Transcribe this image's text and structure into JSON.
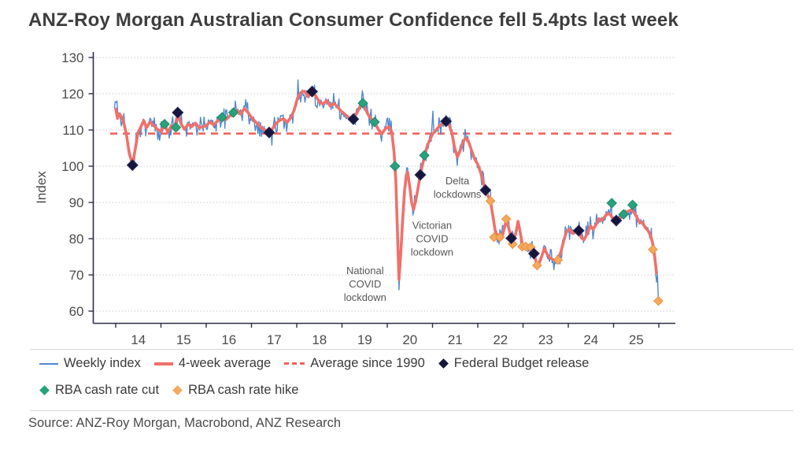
{
  "title": "ANZ-Roy Morgan Australian Consumer Confidence fell 5.4pts last week",
  "source": "Source: ANZ-Roy Morgan, Macrobond, ANZ Research",
  "colors": {
    "weekly": "#5288cc",
    "fourweek": "#f0706b",
    "average_line": "#f2625c",
    "budget": "#16163c",
    "rate_cut": "#28a27c",
    "rate_hike": "#f5a95f",
    "grid": "#cccccc",
    "axis": "#2e2e48",
    "tick_text": "#4c4c4c",
    "annotation_text": "#575757",
    "separator": "#d8d8d8"
  },
  "legend": {
    "rows": [
      [
        {
          "label": "Weekly index",
          "swatch": "line",
          "color": "#5288cc",
          "name": "legend-weekly-index"
        },
        {
          "label": "4-week average",
          "swatch": "thick-line",
          "color": "#f0706b",
          "name": "legend-4-week-average"
        },
        {
          "label": "Average since 1990",
          "swatch": "dashed-line",
          "color": "#f2625c",
          "name": "legend-average-since-1990"
        },
        {
          "label": "Federal Budget release",
          "swatch": "diamond",
          "color": "#16163c",
          "name": "legend-federal-budget-release"
        }
      ],
      [
        {
          "label": "RBA cash rate cut",
          "swatch": "diamond",
          "color": "#28a27c",
          "name": "legend-rba-cash-rate-cut"
        },
        {
          "label": "RBA cash rate hike",
          "swatch": "diamond",
          "color": "#f5a95f",
          "name": "legend-rba-cash-rate-hike"
        }
      ]
    ]
  },
  "chart_data": {
    "type": "line",
    "title": "ANZ-Roy Morgan Australian Consumer Confidence fell 5.4pts last week",
    "xlabel": "",
    "ylabel": "Index",
    "ylim": [
      56.5,
      131.5
    ],
    "xlim": [
      2013.5,
      2026.4
    ],
    "grid": "dotted-horizontal",
    "legend_position": "bottom",
    "yticks": [
      60,
      70,
      80,
      90,
      100,
      110,
      120,
      130
    ],
    "xtick_boundaries": [
      2014,
      2015,
      2016,
      2017,
      2018,
      2019,
      2020,
      2021,
      2022,
      2023,
      2024,
      2025,
      2026
    ],
    "xtick_labels": [
      "14",
      "15",
      "16",
      "17",
      "18",
      "19",
      "20",
      "21",
      "22",
      "23",
      "24",
      "25"
    ],
    "average_since_1990": 109,
    "weekly_noise_amplitude": 1.5,
    "series": [
      {
        "name": "4-week average",
        "points": [
          [
            2014.0,
            115.8
          ],
          [
            2014.04,
            113.2
          ],
          [
            2014.08,
            114.5
          ],
          [
            2014.13,
            113.6
          ],
          [
            2014.18,
            111.8
          ],
          [
            2014.24,
            108.5
          ],
          [
            2014.3,
            103.5
          ],
          [
            2014.37,
            100.5
          ],
          [
            2014.43,
            104.5
          ],
          [
            2014.49,
            109.2
          ],
          [
            2014.56,
            111.0
          ],
          [
            2014.62,
            112.6
          ],
          [
            2014.68,
            110.6
          ],
          [
            2014.76,
            112.2
          ],
          [
            2014.84,
            111.2
          ],
          [
            2014.92,
            110.2
          ],
          [
            2015.0,
            109.6
          ],
          [
            2015.08,
            111.6
          ],
          [
            2015.15,
            109.4
          ],
          [
            2015.23,
            111.2
          ],
          [
            2015.3,
            110.6
          ],
          [
            2015.37,
            114.4
          ],
          [
            2015.45,
            111.5
          ],
          [
            2015.52,
            110.2
          ],
          [
            2015.6,
            111.6
          ],
          [
            2015.68,
            110.9
          ],
          [
            2015.76,
            111.9
          ],
          [
            2015.85,
            110.6
          ],
          [
            2015.93,
            110.9
          ],
          [
            2016.0,
            111.2
          ],
          [
            2016.08,
            112.2
          ],
          [
            2016.16,
            111.4
          ],
          [
            2016.24,
            112.4
          ],
          [
            2016.35,
            113.6
          ],
          [
            2016.44,
            112.9
          ],
          [
            2016.52,
            113.9
          ],
          [
            2016.6,
            114.9
          ],
          [
            2016.68,
            115.4
          ],
          [
            2016.76,
            114.4
          ],
          [
            2016.84,
            115.9
          ],
          [
            2016.92,
            114.9
          ],
          [
            2017.0,
            113.4
          ],
          [
            2017.08,
            112.4
          ],
          [
            2017.16,
            111.4
          ],
          [
            2017.24,
            110.4
          ],
          [
            2017.32,
            109.9
          ],
          [
            2017.39,
            109.4
          ],
          [
            2017.47,
            110.4
          ],
          [
            2017.55,
            111.9
          ],
          [
            2017.63,
            112.7
          ],
          [
            2017.71,
            113.1
          ],
          [
            2017.79,
            112.1
          ],
          [
            2017.87,
            113.4
          ],
          [
            2017.94,
            115.4
          ],
          [
            2018.02,
            118.9
          ],
          [
            2018.1,
            120.4
          ],
          [
            2018.17,
            120.7
          ],
          [
            2018.25,
            119.2
          ],
          [
            2018.34,
            120.4
          ],
          [
            2018.42,
            119.4
          ],
          [
            2018.5,
            117.7
          ],
          [
            2018.58,
            117.2
          ],
          [
            2018.66,
            118.1
          ],
          [
            2018.74,
            116.6
          ],
          [
            2018.82,
            117.4
          ],
          [
            2018.9,
            116.4
          ],
          [
            2018.98,
            115.2
          ],
          [
            2019.06,
            114.4
          ],
          [
            2019.15,
            113.4
          ],
          [
            2019.25,
            113.1
          ],
          [
            2019.34,
            114.9
          ],
          [
            2019.42,
            117.2
          ],
          [
            2019.5,
            116.2
          ],
          [
            2019.58,
            114.2
          ],
          [
            2019.65,
            113.0
          ],
          [
            2019.72,
            112.2
          ],
          [
            2019.8,
            110.2
          ],
          [
            2019.88,
            108.9
          ],
          [
            2019.96,
            110.4
          ],
          [
            2020.04,
            110.9
          ],
          [
            2020.1,
            109.4
          ],
          [
            2020.15,
            104.0
          ],
          [
            2020.19,
            96.0
          ],
          [
            2020.23,
            80.0
          ],
          [
            2020.26,
            68.7
          ],
          [
            2020.3,
            76.0
          ],
          [
            2020.34,
            85.0
          ],
          [
            2020.38,
            93.0
          ],
          [
            2020.42,
            97.5
          ],
          [
            2020.45,
            98.3
          ],
          [
            2020.5,
            94.0
          ],
          [
            2020.54,
            90.0
          ],
          [
            2020.58,
            88.0
          ],
          [
            2020.63,
            90.5
          ],
          [
            2020.68,
            94.0
          ],
          [
            2020.73,
            97.7
          ],
          [
            2020.78,
            100.5
          ],
          [
            2020.83,
            103.0
          ],
          [
            2020.88,
            105.5
          ],
          [
            2020.94,
            107.3
          ],
          [
            2021.0,
            108.8
          ],
          [
            2021.08,
            110.0
          ],
          [
            2021.16,
            111.2
          ],
          [
            2021.24,
            111.9
          ],
          [
            2021.3,
            112.3
          ],
          [
            2021.37,
            111.3
          ],
          [
            2021.43,
            109.0
          ],
          [
            2021.49,
            105.0
          ],
          [
            2021.55,
            102.5
          ],
          [
            2021.61,
            104.3
          ],
          [
            2021.68,
            106.8
          ],
          [
            2021.73,
            107.8
          ],
          [
            2021.79,
            107.0
          ],
          [
            2021.86,
            104.5
          ],
          [
            2021.93,
            102.0
          ],
          [
            2022.0,
            100.5
          ],
          [
            2022.07,
            98.0
          ],
          [
            2022.12,
            95.5
          ],
          [
            2022.17,
            93.4
          ],
          [
            2022.23,
            91.8
          ],
          [
            2022.28,
            90.3
          ],
          [
            2022.33,
            86.5
          ],
          [
            2022.38,
            82.5
          ],
          [
            2022.43,
            80.7
          ],
          [
            2022.49,
            81.3
          ],
          [
            2022.54,
            80.6
          ],
          [
            2022.59,
            83.0
          ],
          [
            2022.63,
            85.3
          ],
          [
            2022.68,
            83.2
          ],
          [
            2022.73,
            80.3
          ],
          [
            2022.78,
            79.0
          ],
          [
            2022.84,
            81.5
          ],
          [
            2022.89,
            84.8
          ],
          [
            2022.94,
            81.5
          ],
          [
            2022.99,
            78.2
          ],
          [
            2023.06,
            77.9
          ],
          [
            2023.12,
            77.6
          ],
          [
            2023.17,
            77.4
          ],
          [
            2023.24,
            76.0
          ],
          [
            2023.29,
            73.5
          ],
          [
            2023.34,
            72.6
          ],
          [
            2023.41,
            75.0
          ],
          [
            2023.47,
            77.3
          ],
          [
            2023.53,
            75.8
          ],
          [
            2023.58,
            74.8
          ],
          [
            2023.65,
            74.3
          ],
          [
            2023.72,
            74.0
          ],
          [
            2023.78,
            74.5
          ],
          [
            2023.84,
            76.5
          ],
          [
            2023.9,
            79.5
          ],
          [
            2023.96,
            82.0
          ],
          [
            2024.03,
            82.6
          ],
          [
            2024.1,
            81.4
          ],
          [
            2024.17,
            81.9
          ],
          [
            2024.23,
            82.3
          ],
          [
            2024.29,
            80.2
          ],
          [
            2024.35,
            79.7
          ],
          [
            2024.42,
            81.5
          ],
          [
            2024.49,
            83.5
          ],
          [
            2024.55,
            82.6
          ],
          [
            2024.62,
            84.0
          ],
          [
            2024.68,
            85.5
          ],
          [
            2024.74,
            85.0
          ],
          [
            2024.8,
            86.0
          ],
          [
            2024.87,
            87.0
          ],
          [
            2024.93,
            86.6
          ],
          [
            2025.0,
            85.2
          ],
          [
            2025.06,
            85.0
          ],
          [
            2025.13,
            85.5
          ],
          [
            2025.19,
            86.1
          ],
          [
            2025.26,
            87.2
          ],
          [
            2025.33,
            87.6
          ],
          [
            2025.4,
            88.0
          ],
          [
            2025.46,
            87.0
          ],
          [
            2025.52,
            85.8
          ],
          [
            2025.58,
            84.4
          ],
          [
            2025.64,
            84.5
          ],
          [
            2025.7,
            83.0
          ],
          [
            2025.76,
            82.3
          ],
          [
            2025.82,
            80.8
          ],
          [
            2025.87,
            78.5
          ],
          [
            2025.91,
            75.0
          ],
          [
            2025.95,
            70.5
          ]
        ]
      },
      {
        "name": "Weekly index",
        "derived_from": "4-week average",
        "extremes": [
          [
            2013.98,
            117.8
          ],
          [
            2014.02,
            118.0
          ],
          [
            2014.37,
            99.0
          ],
          [
            2015.37,
            115.0
          ],
          [
            2016.88,
            118.4
          ],
          [
            2017.45,
            105.8
          ],
          [
            2018.02,
            123.8
          ],
          [
            2018.4,
            122.4
          ],
          [
            2019.46,
            120.8
          ],
          [
            2019.88,
            106.9
          ],
          [
            2020.26,
            65.9
          ],
          [
            2020.44,
            99.6
          ],
          [
            2020.57,
            86.5
          ],
          [
            2021.0,
            115.2
          ],
          [
            2021.3,
            114.0
          ],
          [
            2022.43,
            79.0
          ],
          [
            2023.33,
            71.8
          ],
          [
            2024.96,
            89.8
          ],
          [
            2025.23,
            87.0
          ],
          [
            2025.42,
            89.5
          ],
          [
            2025.86,
            77.0
          ],
          [
            2025.93,
            70.0
          ],
          [
            2025.99,
            62.8
          ]
        ],
        "end": [
          2025.99,
          62.8
        ]
      }
    ],
    "markers": {
      "federal_budget_release": [
        [
          2014.37,
          100.3
        ],
        [
          2015.37,
          114.8
        ],
        [
          2017.39,
          109.3
        ],
        [
          2018.34,
          120.6
        ],
        [
          2019.25,
          113.0
        ],
        [
          2020.73,
          97.6
        ],
        [
          2021.3,
          112.4
        ],
        [
          2022.17,
          93.4
        ],
        [
          2022.74,
          80.1
        ],
        [
          2023.24,
          75.9
        ],
        [
          2024.23,
          82.2
        ],
        [
          2025.06,
          85.0
        ]
      ],
      "rba_cash_rate_cut": [
        [
          2015.08,
          111.6
        ],
        [
          2015.33,
          110.7
        ],
        [
          2016.35,
          113.5
        ],
        [
          2016.6,
          114.8
        ],
        [
          2019.46,
          117.4
        ],
        [
          2019.72,
          112.2
        ],
        [
          2020.17,
          100.0
        ],
        [
          2020.82,
          103.0
        ],
        [
          2024.96,
          89.8
        ],
        [
          2025.22,
          86.7
        ],
        [
          2025.42,
          89.3
        ]
      ],
      "rba_cash_rate_hike": [
        [
          2022.28,
          90.4
        ],
        [
          2022.36,
          80.4
        ],
        [
          2022.49,
          80.4
        ],
        [
          2022.63,
          85.4
        ],
        [
          2022.77,
          78.5
        ],
        [
          2022.98,
          77.8
        ],
        [
          2023.06,
          77.8
        ],
        [
          2023.17,
          77.6
        ],
        [
          2023.31,
          72.6
        ],
        [
          2023.77,
          74.1
        ],
        [
          2025.87,
          77.0
        ],
        [
          2025.99,
          62.8
        ]
      ]
    },
    "annotations": [
      {
        "lines": [
          "National",
          "COVID",
          "lockdown"
        ],
        "x": 2019.51,
        "y": 66.5,
        "name": "annotation-national-covid-lockdown"
      },
      {
        "lines": [
          "Victorian",
          "COVID",
          "lockdown"
        ],
        "x": 2020.99,
        "y": 79.0,
        "name": "annotation-victorian-covid-lockdown"
      },
      {
        "lines": [
          "Delta",
          "lockdowns"
        ],
        "x": 2021.55,
        "y": 93.2,
        "name": "annotation-delta-lockdowns"
      }
    ]
  }
}
